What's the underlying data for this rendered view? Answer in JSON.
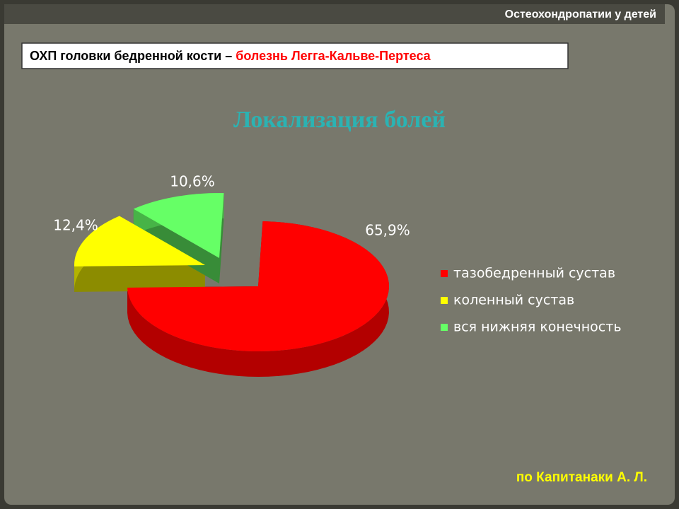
{
  "header": "Остеохондропатии у детей",
  "subtitle": {
    "main": "ОХП головки бедренной кости – ",
    "highlight": "болезнь Легга-Кальве-Пертеса"
  },
  "footer": "по Капитанаки А. Л.",
  "chart_data": {
    "type": "pie",
    "title": "Локализация болей",
    "categories": [
      "тазобедренный сустав",
      "коленный сустав",
      "вся нижняя конечность"
    ],
    "values": [
      65.9,
      12.4,
      10.6
    ],
    "value_labels": [
      "65,9%",
      "12,4%",
      "10,6%"
    ],
    "colors": [
      "#ff0000",
      "#ffff00",
      "#66ff66"
    ],
    "legend": "right"
  }
}
